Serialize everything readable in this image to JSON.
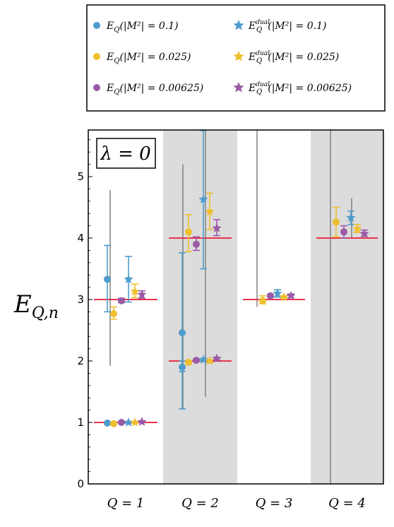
{
  "chart_data": {
    "type": "scatter",
    "ylabel": "E_{Q,n}",
    "annotation": "λ = 0",
    "categories": [
      "Q = 1",
      "Q = 2",
      "Q = 3",
      "Q = 4"
    ],
    "ylim": [
      0,
      5.75
    ],
    "yticks": [
      0,
      1,
      2,
      3,
      4,
      5
    ],
    "shaded_categories": [
      "Q = 2",
      "Q = 4"
    ],
    "reference_levels": [
      {
        "category": "Q = 1",
        "y": 1
      },
      {
        "category": "Q = 1",
        "y": 3
      },
      {
        "category": "Q = 2",
        "y": 2
      },
      {
        "category": "Q = 2",
        "y": 4
      },
      {
        "category": "Q = 3",
        "y": 3
      },
      {
        "category": "Q = 4",
        "y": 4
      }
    ],
    "series": [
      {
        "name": "E_Q(|M^2| = 0.1)",
        "marker": "circle",
        "color": "#4f9ccc",
        "points": [
          {
            "category": "Q = 1",
            "y": 0.99,
            "err_low": 0.98,
            "err_high": 1.0
          },
          {
            "category": "Q = 1",
            "y": 3.33,
            "err_low": 2.8,
            "err_high": 3.88
          },
          {
            "category": "Q = 2",
            "y": 1.9,
            "err_low": 1.83,
            "err_high": 2.0
          },
          {
            "category": "Q = 2",
            "y": 2.46,
            "err_low": 1.22,
            "err_high": 3.76
          }
        ]
      },
      {
        "name": "E_Q(|M^2| = 0.025)",
        "marker": "circle",
        "color": "#eebf2e",
        "points": [
          {
            "category": "Q = 1",
            "y": 0.98,
            "err_low": 0.97,
            "err_high": 0.99
          },
          {
            "category": "Q = 1",
            "y": 2.77,
            "err_low": 2.68,
            "err_high": 2.88
          },
          {
            "category": "Q = 2",
            "y": 1.98,
            "err_low": 1.95,
            "err_high": 2.0
          },
          {
            "category": "Q = 2",
            "y": 4.1,
            "err_low": 3.78,
            "err_high": 4.38
          },
          {
            "category": "Q = 3",
            "y": 2.98,
            "err_low": 2.93,
            "err_high": 3.06
          },
          {
            "category": "Q = 4",
            "y": 4.26,
            "err_low": 4.02,
            "err_high": 4.5
          }
        ]
      },
      {
        "name": "E_Q(|M^2| = 0.00625)",
        "marker": "circle",
        "color": "#9a5ba6",
        "points": [
          {
            "category": "Q = 1",
            "y": 1.0,
            "err_low": 0.99,
            "err_high": 1.01
          },
          {
            "category": "Q = 1",
            "y": 2.98,
            "err_low": 2.95,
            "err_high": 3.02
          },
          {
            "category": "Q = 2",
            "y": 2.01,
            "err_low": 2.0,
            "err_high": 2.02
          },
          {
            "category": "Q = 2",
            "y": 3.9,
            "err_low": 3.8,
            "err_high": 4.02
          },
          {
            "category": "Q = 3",
            "y": 3.06,
            "err_low": 3.04,
            "err_high": 3.08
          },
          {
            "category": "Q = 4",
            "y": 4.1,
            "err_low": 4.0,
            "err_high": 4.2
          }
        ]
      },
      {
        "name": "E_Q^{dual}(|M^2| = 0.1)",
        "marker": "star",
        "color": "#4f9ccc",
        "points": [
          {
            "category": "Q = 1",
            "y": 1.0,
            "err_low": 0.99,
            "err_high": 1.01
          },
          {
            "category": "Q = 1",
            "y": 3.33,
            "err_low": 2.96,
            "err_high": 3.7
          },
          {
            "category": "Q = 2",
            "y": 2.02,
            "err_low": 2.0,
            "err_high": 2.04
          },
          {
            "category": "Q = 2",
            "y": 4.63,
            "err_low": 3.5,
            "err_high": 5.75
          },
          {
            "category": "Q = 3",
            "y": 3.1,
            "err_low": 3.04,
            "err_high": 3.16
          },
          {
            "category": "Q = 4",
            "y": 4.33,
            "err_low": 4.22,
            "err_high": 4.44
          }
        ]
      },
      {
        "name": "E_Q^{dual}(|M^2| = 0.025)",
        "marker": "star",
        "color": "#eebf2e",
        "points": [
          {
            "category": "Q = 1",
            "y": 1.0,
            "err_low": 0.99,
            "err_high": 1.01
          },
          {
            "category": "Q = 1",
            "y": 3.13,
            "err_low": 3.03,
            "err_high": 3.25
          },
          {
            "category": "Q = 2",
            "y": 2.0,
            "err_low": 1.98,
            "err_high": 2.02
          },
          {
            "category": "Q = 2",
            "y": 4.43,
            "err_low": 4.14,
            "err_high": 4.73
          },
          {
            "category": "Q = 3",
            "y": 3.04,
            "err_low": 3.02,
            "err_high": 3.06
          },
          {
            "category": "Q = 4",
            "y": 4.15,
            "err_low": 4.09,
            "err_high": 4.22
          }
        ]
      },
      {
        "name": "E_Q^{dual}(|M^2| = 0.00625)",
        "marker": "star",
        "color": "#9a5ba6",
        "points": [
          {
            "category": "Q = 1",
            "y": 1.01,
            "err_low": 1.0,
            "err_high": 1.02
          },
          {
            "category": "Q = 1",
            "y": 3.08,
            "err_low": 3.02,
            "err_high": 3.14
          },
          {
            "category": "Q = 2",
            "y": 2.04,
            "err_low": 2.02,
            "err_high": 2.06
          },
          {
            "category": "Q = 2",
            "y": 4.16,
            "err_low": 4.04,
            "err_high": 4.3
          },
          {
            "category": "Q = 3",
            "y": 3.06,
            "err_low": 3.03,
            "err_high": 3.09
          },
          {
            "category": "Q = 4",
            "y": 4.07,
            "err_low": 4.03,
            "err_high": 4.13
          }
        ]
      }
    ],
    "gray_errorbars": [
      {
        "category": "Q = 1",
        "y_low": 1.92,
        "y_high": 4.78
      },
      {
        "category": "Q = 2",
        "y_low": 1.22,
        "y_high": 5.2
      },
      {
        "category": "Q = 2",
        "y_low": 1.42,
        "y_high": 5.75
      },
      {
        "category": "Q = 3",
        "y_low": 2.88,
        "y_high": 5.75
      },
      {
        "category": "Q = 4",
        "y_low": 0,
        "y_high": 5.75
      },
      {
        "category": "Q = 4",
        "y_low": 4.0,
        "y_high": 4.65
      }
    ],
    "colors": {
      "blue": "#4f9ccc",
      "yellow": "#eebf2e",
      "purple": "#9a5ba6",
      "reference": "#e8344a",
      "shade": "#dcdcdc",
      "gray": "#808080"
    }
  }
}
